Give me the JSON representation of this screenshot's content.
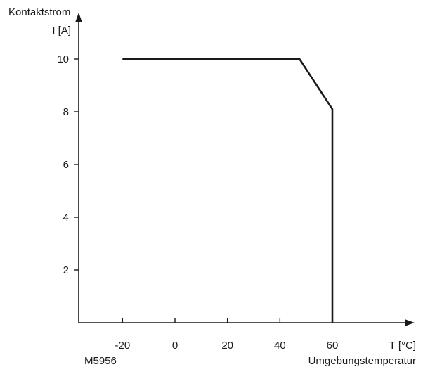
{
  "chart_data": {
    "type": "line",
    "ylabel_line1": "Kontaktstrom",
    "ylabel_line2": "I [A]",
    "xlabel_unit": "T [°C]",
    "xlabel_text": "Umgebungstemperatur",
    "figure_code": "M5956",
    "xlim": [
      -35,
      95
    ],
    "ylim": [
      0,
      10.8
    ],
    "x_ticks": [
      -20,
      0,
      20,
      40,
      60
    ],
    "y_ticks": [
      2,
      4,
      6,
      8,
      10
    ],
    "series": [
      {
        "x": [
          -20,
          47.5,
          60,
          60
        ],
        "y": [
          10,
          10,
          8.1,
          0
        ]
      }
    ],
    "grid": false,
    "legend": "none"
  }
}
